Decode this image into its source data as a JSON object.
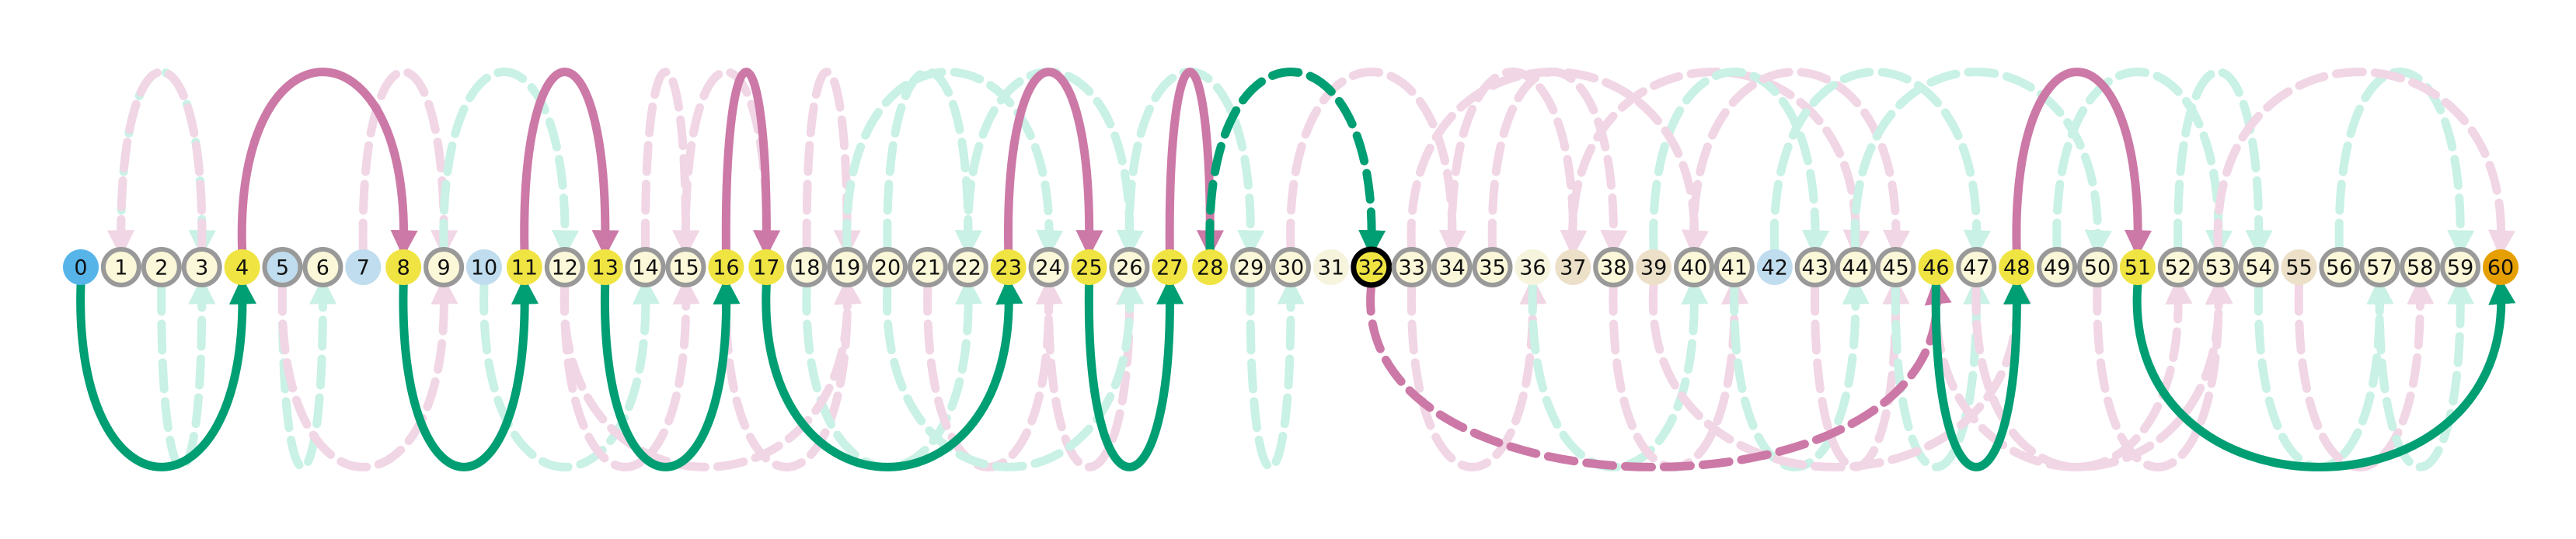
{
  "nodes": [
    {
      "label": "0",
      "style": "start"
    },
    {
      "label": "1",
      "style": "ring"
    },
    {
      "label": "2",
      "style": "ring"
    },
    {
      "label": "3",
      "style": "ring"
    },
    {
      "label": "4",
      "style": "stop"
    },
    {
      "label": "5",
      "style": "ring-blue"
    },
    {
      "label": "6",
      "style": "ring"
    },
    {
      "label": "7",
      "style": "blue"
    },
    {
      "label": "8",
      "style": "stop"
    },
    {
      "label": "9",
      "style": "ring"
    },
    {
      "label": "10",
      "style": "blue"
    },
    {
      "label": "11",
      "style": "stop"
    },
    {
      "label": "12",
      "style": "ring"
    },
    {
      "label": "13",
      "style": "stop"
    },
    {
      "label": "14",
      "style": "ring"
    },
    {
      "label": "15",
      "style": "ring"
    },
    {
      "label": "16",
      "style": "stop"
    },
    {
      "label": "17",
      "style": "stop"
    },
    {
      "label": "18",
      "style": "ring"
    },
    {
      "label": "19",
      "style": "ring"
    },
    {
      "label": "20",
      "style": "ring"
    },
    {
      "label": "21",
      "style": "ring"
    },
    {
      "label": "22",
      "style": "ring"
    },
    {
      "label": "23",
      "style": "stop"
    },
    {
      "label": "24",
      "style": "ring"
    },
    {
      "label": "25",
      "style": "stop"
    },
    {
      "label": "26",
      "style": "ring"
    },
    {
      "label": "27",
      "style": "stop"
    },
    {
      "label": "28",
      "style": "stop"
    },
    {
      "label": "29",
      "style": "ring"
    },
    {
      "label": "30",
      "style": "ring"
    },
    {
      "label": "31",
      "style": "plain"
    },
    {
      "label": "32",
      "style": "current"
    },
    {
      "label": "33",
      "style": "ring"
    },
    {
      "label": "34",
      "style": "ring"
    },
    {
      "label": "35",
      "style": "ring"
    },
    {
      "label": "36",
      "style": "plain"
    },
    {
      "label": "37",
      "style": "tan"
    },
    {
      "label": "38",
      "style": "ring"
    },
    {
      "label": "39",
      "style": "tan"
    },
    {
      "label": "40",
      "style": "ring"
    },
    {
      "label": "41",
      "style": "ring"
    },
    {
      "label": "42",
      "style": "blue"
    },
    {
      "label": "43",
      "style": "ring"
    },
    {
      "label": "44",
      "style": "ring"
    },
    {
      "label": "45",
      "style": "ring"
    },
    {
      "label": "46",
      "style": "stop"
    },
    {
      "label": "47",
      "style": "ring"
    },
    {
      "label": "48",
      "style": "stop"
    },
    {
      "label": "49",
      "style": "ring"
    },
    {
      "label": "50",
      "style": "ring"
    },
    {
      "label": "51",
      "style": "stop"
    },
    {
      "label": "52",
      "style": "ring"
    },
    {
      "label": "53",
      "style": "ring"
    },
    {
      "label": "54",
      "style": "ring"
    },
    {
      "label": "55",
      "style": "tan"
    },
    {
      "label": "56",
      "style": "ring"
    },
    {
      "label": "57",
      "style": "ring"
    },
    {
      "label": "58",
      "style": "ring"
    },
    {
      "label": "59",
      "style": "ring"
    },
    {
      "label": "60",
      "style": "goal"
    }
  ],
  "main_edges": [
    {
      "from": 0,
      "to": 4,
      "side": "below",
      "color": "green",
      "dashed": false
    },
    {
      "from": 4,
      "to": 8,
      "side": "above",
      "color": "pink",
      "dashed": false
    },
    {
      "from": 8,
      "to": 11,
      "side": "below",
      "color": "green",
      "dashed": false
    },
    {
      "from": 11,
      "to": 13,
      "side": "above",
      "color": "pink",
      "dashed": false
    },
    {
      "from": 13,
      "to": 16,
      "side": "below",
      "color": "green",
      "dashed": false
    },
    {
      "from": 16,
      "to": 17,
      "side": "above",
      "color": "pink",
      "dashed": false
    },
    {
      "from": 17,
      "to": 23,
      "side": "below",
      "color": "green",
      "dashed": false
    },
    {
      "from": 23,
      "to": 25,
      "side": "above",
      "color": "pink",
      "dashed": false
    },
    {
      "from": 25,
      "to": 27,
      "side": "below",
      "color": "green",
      "dashed": false
    },
    {
      "from": 27,
      "to": 28,
      "side": "above",
      "color": "pink",
      "dashed": false
    },
    {
      "from": 28,
      "to": 32,
      "side": "above",
      "color": "green",
      "dashed": true
    },
    {
      "from": 32,
      "to": 46,
      "side": "below",
      "color": "pink",
      "dashed": true
    },
    {
      "from": 46,
      "to": 48,
      "side": "below",
      "color": "green",
      "dashed": false
    },
    {
      "from": 48,
      "to": 51,
      "side": "above",
      "color": "pink",
      "dashed": false
    },
    {
      "from": 51,
      "to": 60,
      "side": "below",
      "color": "green",
      "dashed": false
    }
  ],
  "faint_edges": [
    {
      "from": 1,
      "to": 3,
      "side": "above",
      "color": "green"
    },
    {
      "from": 3,
      "to": 1,
      "side": "above",
      "color": "pink"
    },
    {
      "from": 2,
      "to": 3,
      "side": "below",
      "color": "green"
    },
    {
      "from": 5,
      "to": 6,
      "side": "below",
      "color": "green"
    },
    {
      "from": 5,
      "to": 9,
      "side": "below",
      "color": "pink"
    },
    {
      "from": 7,
      "to": 9,
      "side": "above",
      "color": "pink"
    },
    {
      "from": 9,
      "to": 12,
      "side": "above",
      "color": "green"
    },
    {
      "from": 10,
      "to": 14,
      "side": "below",
      "color": "green"
    },
    {
      "from": 12,
      "to": 15,
      "side": "below",
      "color": "pink"
    },
    {
      "from": 14,
      "to": 15,
      "side": "above",
      "color": "pink"
    },
    {
      "from": 15,
      "to": 17,
      "side": "above",
      "color": "pink"
    },
    {
      "from": 16,
      "to": 19,
      "side": "below",
      "color": "pink"
    },
    {
      "from": 18,
      "to": 19,
      "side": "above",
      "color": "pink"
    },
    {
      "from": 18,
      "to": 22,
      "side": "below",
      "color": "green"
    },
    {
      "from": 19,
      "to": 24,
      "side": "above",
      "color": "green"
    },
    {
      "from": 20,
      "to": 22,
      "side": "above",
      "color": "green"
    },
    {
      "from": 21,
      "to": 24,
      "side": "below",
      "color": "pink"
    },
    {
      "from": 22,
      "to": 26,
      "side": "above",
      "color": "green"
    },
    {
      "from": 24,
      "to": 26,
      "side": "below",
      "color": "pink"
    },
    {
      "from": 26,
      "to": 29,
      "side": "above",
      "color": "green"
    },
    {
      "from": 29,
      "to": 30,
      "side": "below",
      "color": "green"
    },
    {
      "from": 30,
      "to": 34,
      "side": "above",
      "color": "pink"
    },
    {
      "from": 33,
      "to": 36,
      "side": "below",
      "color": "pink"
    },
    {
      "from": 34,
      "to": 37,
      "side": "above",
      "color": "pink"
    },
    {
      "from": 35,
      "to": 38,
      "side": "above",
      "color": "pink"
    },
    {
      "from": 36,
      "to": 40,
      "side": "below",
      "color": "green"
    },
    {
      "from": 37,
      "to": 44,
      "side": "above",
      "color": "pink"
    },
    {
      "from": 38,
      "to": 41,
      "side": "below",
      "color": "pink"
    },
    {
      "from": 39,
      "to": 43,
      "side": "above",
      "color": "green"
    },
    {
      "from": 40,
      "to": 45,
      "side": "above",
      "color": "pink"
    },
    {
      "from": 41,
      "to": 44,
      "side": "below",
      "color": "green"
    },
    {
      "from": 42,
      "to": 47,
      "side": "above",
      "color": "green"
    },
    {
      "from": 43,
      "to": 45,
      "side": "below",
      "color": "pink"
    },
    {
      "from": 44,
      "to": 50,
      "side": "above",
      "color": "green"
    },
    {
      "from": 45,
      "to": 47,
      "side": "below",
      "color": "green"
    },
    {
      "from": 47,
      "to": 52,
      "side": "below",
      "color": "pink"
    },
    {
      "from": 49,
      "to": 53,
      "side": "above",
      "color": "green"
    },
    {
      "from": 50,
      "to": 53,
      "side": "below",
      "color": "pink"
    },
    {
      "from": 52,
      "to": 54,
      "side": "above",
      "color": "green"
    },
    {
      "from": 54,
      "to": 57,
      "side": "below",
      "color": "green"
    },
    {
      "from": 55,
      "to": 58,
      "side": "below",
      "color": "pink"
    },
    {
      "from": 56,
      "to": 59,
      "side": "above",
      "color": "green"
    },
    {
      "from": 57,
      "to": 59,
      "side": "below",
      "color": "green"
    },
    {
      "from": 46,
      "to": 53,
      "side": "below",
      "color": "pink"
    },
    {
      "from": 39,
      "to": 48,
      "side": "below",
      "color": "pink"
    },
    {
      "from": 53,
      "to": 60,
      "side": "above",
      "color": "pink"
    },
    {
      "from": 33,
      "to": 40,
      "side": "above",
      "color": "pink"
    },
    {
      "from": 12,
      "to": 19,
      "side": "below",
      "color": "pink"
    },
    {
      "from": 20,
      "to": 26,
      "side": "below",
      "color": "green"
    }
  ],
  "colors": {
    "green": "#009e73",
    "pink": "#cc79a7",
    "faint_green": "#c9f1e5",
    "faint_pink": "#f1d6e5",
    "stop": "#f0e442",
    "start": "#56b4e9",
    "goal": "#e69f00",
    "ring_fill": "#fbf7d9",
    "ring_stroke": "#999999",
    "blue": "#bfddee",
    "tan": "#ede0c8",
    "plain": "#f6f4dc",
    "current_stroke": "#000000"
  }
}
